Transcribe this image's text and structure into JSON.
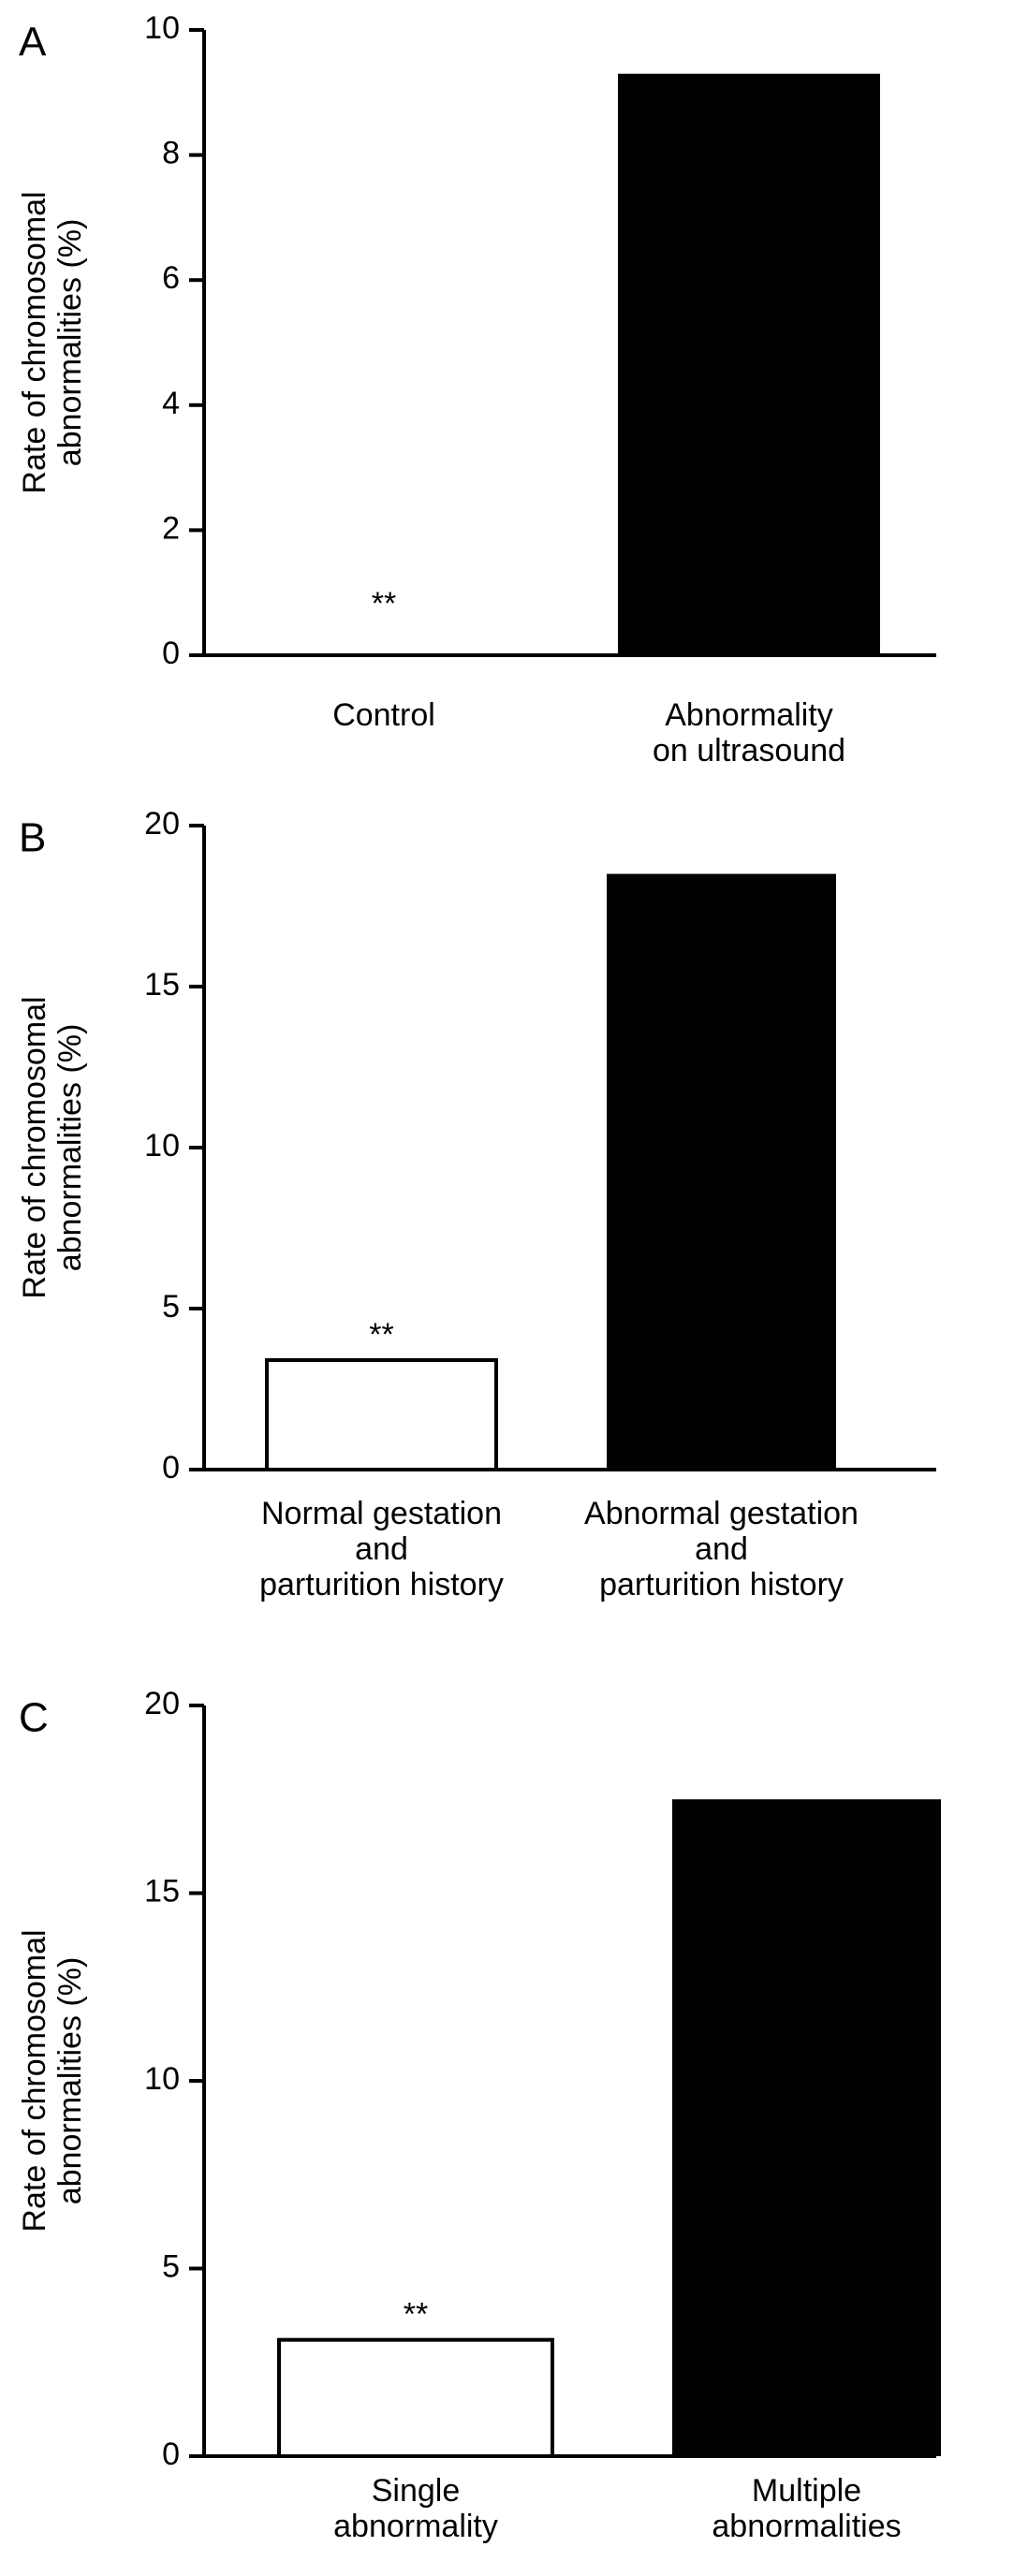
{
  "chart_data": [
    {
      "type": "bar",
      "panel": "A",
      "ylabel": [
        "Rate of chromosomal",
        "abnormalities (%)"
      ],
      "ylim": [
        0,
        10
      ],
      "yticks": [
        0,
        2,
        4,
        6,
        8,
        10
      ],
      "categories": [
        {
          "lines": [
            "Control"
          ]
        },
        {
          "lines": [
            "Abnormality",
            "on ultrasound"
          ]
        }
      ],
      "values": [
        0,
        9.3
      ],
      "fills": [
        "#ffffff",
        "#000000"
      ],
      "annotations": [
        "**",
        ""
      ]
    },
    {
      "type": "bar",
      "panel": "B",
      "ylabel": [
        "Rate of chromosomal",
        "abnormalities (%)"
      ],
      "ylim": [
        0,
        20
      ],
      "yticks": [
        0,
        5,
        10,
        15,
        20
      ],
      "categories": [
        {
          "lines": [
            "Normal gestation",
            "and",
            "parturition history"
          ]
        },
        {
          "lines": [
            "Abnormal gestation",
            "and",
            "parturition history"
          ]
        }
      ],
      "values": [
        3.4,
        18.5
      ],
      "fills": [
        "#ffffff",
        "#000000"
      ],
      "annotations": [
        "**",
        ""
      ]
    },
    {
      "type": "bar",
      "panel": "C",
      "ylabel": [
        "Rate of chromosomal",
        "abnormalities (%)"
      ],
      "ylim": [
        0,
        20
      ],
      "yticks": [
        0,
        5,
        10,
        15,
        20
      ],
      "categories": [
        {
          "lines": [
            "Single",
            "abnormality"
          ]
        },
        {
          "lines": [
            "Multiple",
            "abnormalities"
          ]
        }
      ],
      "values": [
        3.1,
        17.5
      ],
      "fills": [
        "#ffffff",
        "#000000"
      ],
      "annotations": [
        "**",
        ""
      ]
    }
  ]
}
